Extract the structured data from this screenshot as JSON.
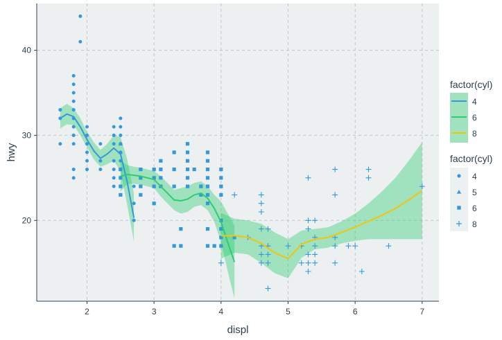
{
  "chart_data": {
    "type": "scatter",
    "xlabel": "displ",
    "ylabel": "hwy",
    "xlim": [
      1.25,
      7.25
    ],
    "ylim": [
      10.5,
      45.5
    ],
    "x_ticks": [
      2,
      3,
      4,
      5,
      6,
      7
    ],
    "y_ticks": [
      20,
      30,
      40
    ],
    "x_tick_labels": [
      "2",
      "3",
      "4",
      "5",
      "6",
      "7"
    ],
    "y_tick_labels": [
      "20",
      "30",
      "40"
    ],
    "grid": true,
    "legend_position": "right",
    "colors": {
      "panel_bg": "#ecf0f1",
      "grid": "#bdc3c7",
      "points": "#3498db",
      "ribbon": "#2ecc71",
      "line_4": "#3498db",
      "line_6": "#2ecc71",
      "line_8": "#f1c40f"
    },
    "legends": [
      {
        "title": "factor(cyl)",
        "kind": "line",
        "entries": [
          {
            "label": "4",
            "color": "#3498db"
          },
          {
            "label": "6",
            "color": "#2ecc71"
          },
          {
            "label": "8",
            "color": "#f1c40f"
          }
        ]
      },
      {
        "title": "factor(cyl)",
        "kind": "shape",
        "entries": [
          {
            "label": "4",
            "shape": "circle"
          },
          {
            "label": "5",
            "shape": "triangle"
          },
          {
            "label": "6",
            "shape": "square"
          },
          {
            "label": "8",
            "shape": "plus"
          }
        ]
      }
    ],
    "points": {
      "4": [
        [
          1.6,
          33
        ],
        [
          1.6,
          32
        ],
        [
          1.6,
          29
        ],
        [
          1.8,
          26
        ],
        [
          1.8,
          25
        ],
        [
          1.8,
          37
        ],
        [
          1.8,
          36
        ],
        [
          1.8,
          35
        ],
        [
          1.8,
          34
        ],
        [
          1.8,
          33
        ],
        [
          1.8,
          32
        ],
        [
          1.8,
          31
        ],
        [
          1.8,
          30
        ],
        [
          1.8,
          29
        ],
        [
          1.9,
          44
        ],
        [
          1.9,
          41
        ],
        [
          2,
          31
        ],
        [
          2,
          30
        ],
        [
          2,
          29
        ],
        [
          2,
          28
        ],
        [
          2,
          27
        ],
        [
          2,
          26
        ],
        [
          2.2,
          29
        ],
        [
          2.2,
          27
        ],
        [
          2.2,
          26
        ],
        [
          2.4,
          31
        ],
        [
          2.4,
          30
        ],
        [
          2.4,
          29
        ],
        [
          2.4,
          27
        ],
        [
          2.4,
          26
        ],
        [
          2.4,
          24
        ],
        [
          2.4,
          25
        ],
        [
          2.5,
          32
        ],
        [
          2.5,
          31
        ],
        [
          2.5,
          30
        ],
        [
          2.5,
          29
        ],
        [
          2.5,
          28
        ],
        [
          2.5,
          27
        ],
        [
          2.5,
          26
        ],
        [
          2.5,
          25
        ],
        [
          2.5,
          24
        ],
        [
          2.5,
          23
        ],
        [
          2.7,
          24
        ],
        [
          2.7,
          22
        ],
        [
          2.7,
          20
        ]
      ],
      "5": [
        [
          2.5,
          29
        ],
        [
          2.5,
          28
        ]
      ],
      "6": [
        [
          2.5,
          26
        ],
        [
          2.5,
          25
        ],
        [
          2.5,
          24
        ],
        [
          2.5,
          23
        ],
        [
          2.8,
          26
        ],
        [
          2.8,
          25
        ],
        [
          2.8,
          24
        ],
        [
          2.8,
          23
        ],
        [
          3,
          26
        ],
        [
          3,
          25
        ],
        [
          3,
          24
        ],
        [
          3,
          22
        ],
        [
          3.1,
          27
        ],
        [
          3.1,
          26
        ],
        [
          3.1,
          25
        ],
        [
          3.1,
          24
        ],
        [
          3.3,
          28
        ],
        [
          3.3,
          26
        ],
        [
          3.3,
          24
        ],
        [
          3.3,
          17
        ],
        [
          3.4,
          19
        ],
        [
          3.4,
          17
        ],
        [
          3.5,
          29
        ],
        [
          3.5,
          28
        ],
        [
          3.5,
          27
        ],
        [
          3.5,
          26
        ],
        [
          3.5,
          25
        ],
        [
          3.5,
          24
        ],
        [
          3.6,
          26
        ],
        [
          3.7,
          24
        ],
        [
          3.7,
          23
        ],
        [
          3.8,
          28
        ],
        [
          3.8,
          27
        ],
        [
          3.8,
          26
        ],
        [
          3.8,
          25
        ],
        [
          3.8,
          24
        ],
        [
          3.8,
          23
        ],
        [
          3.8,
          22
        ],
        [
          3.8,
          19
        ],
        [
          3.8,
          17
        ],
        [
          3.9,
          17
        ],
        [
          4,
          26
        ],
        [
          4,
          25
        ],
        [
          4,
          24
        ],
        [
          4,
          23
        ],
        [
          4,
          20
        ],
        [
          4,
          19
        ],
        [
          4,
          18
        ],
        [
          4,
          17
        ],
        [
          4.2,
          18
        ]
      ],
      "8": [
        [
          4,
          15
        ],
        [
          4.2,
          23
        ],
        [
          4.4,
          18
        ],
        [
          4.6,
          23
        ],
        [
          4.6,
          22
        ],
        [
          4.6,
          21
        ],
        [
          4.6,
          19
        ],
        [
          4.6,
          17
        ],
        [
          4.6,
          16
        ],
        [
          4.6,
          15
        ],
        [
          4.7,
          19
        ],
        [
          4.7,
          17
        ],
        [
          4.7,
          16
        ],
        [
          4.7,
          15
        ],
        [
          4.7,
          12
        ],
        [
          5,
          17
        ],
        [
          5.2,
          17
        ],
        [
          5.2,
          15
        ],
        [
          5.3,
          25
        ],
        [
          5.3,
          20
        ],
        [
          5.3,
          19
        ],
        [
          5.3,
          16
        ],
        [
          5.3,
          15
        ],
        [
          5.3,
          14
        ],
        [
          5.4,
          20
        ],
        [
          5.4,
          18
        ],
        [
          5.4,
          17
        ],
        [
          5.4,
          16
        ],
        [
          5.4,
          15
        ],
        [
          5.7,
          26
        ],
        [
          5.7,
          23
        ],
        [
          5.7,
          18
        ],
        [
          5.7,
          17
        ],
        [
          5.7,
          15
        ],
        [
          5.9,
          17
        ],
        [
          6,
          17
        ],
        [
          6.1,
          14
        ],
        [
          6.2,
          26
        ],
        [
          6.2,
          25
        ],
        [
          6.5,
          17
        ],
        [
          7,
          24
        ]
      ]
    },
    "smooth": {
      "4": {
        "x": [
          1.6,
          1.7,
          1.8,
          1.9,
          2.0,
          2.1,
          2.2,
          2.3,
          2.4,
          2.5,
          2.6,
          2.7
        ],
        "y": [
          32,
          32.5,
          32.2,
          31,
          29.5,
          28.2,
          27.3,
          27.8,
          28.5,
          27.8,
          24.5,
          20.3
        ],
        "ymin": [
          30.8,
          31.3,
          31.2,
          30,
          28.6,
          27.2,
          26.3,
          26.6,
          27.0,
          25.8,
          21.8,
          17.5
        ],
        "ymax": [
          33.2,
          33.7,
          33.2,
          32,
          30.4,
          29.2,
          28.3,
          29.0,
          30.0,
          29.8,
          27.2,
          23.1
        ]
      },
      "6": {
        "x": [
          2.5,
          2.6,
          2.7,
          2.8,
          3.0,
          3.1,
          3.2,
          3.3,
          3.4,
          3.5,
          3.6,
          3.7,
          3.8,
          3.9,
          4.0,
          4.1,
          4.2
        ],
        "y": [
          25.2,
          25.4,
          25.3,
          25.2,
          24.8,
          24.0,
          23.2,
          22.4,
          22.3,
          22.5,
          23.0,
          23.2,
          22.6,
          21.4,
          19.8,
          17.4,
          15.1
        ],
        "ymin": [
          23.4,
          24.3,
          24.3,
          24.2,
          23.8,
          22.8,
          22.0,
          21.2,
          20.8,
          21.0,
          21.6,
          21.8,
          21.2,
          19.8,
          17.4,
          14.0,
          10.8
        ],
        "ymax": [
          27.0,
          26.5,
          26.3,
          26.2,
          25.8,
          25.2,
          24.4,
          23.6,
          23.8,
          24.0,
          24.4,
          24.6,
          24.0,
          23.0,
          22.2,
          20.8,
          19.4
        ]
      },
      "8": {
        "x": [
          4.0,
          4.2,
          4.4,
          4.6,
          4.8,
          5.0,
          5.2,
          5.4,
          5.6,
          5.8,
          6.0,
          6.2,
          6.4,
          6.6,
          6.8,
          7.0
        ],
        "y": [
          18.2,
          18.2,
          18.0,
          17.3,
          16.2,
          15.5,
          17.2,
          17.8,
          18.0,
          18.6,
          19.2,
          19.9,
          20.6,
          21.4,
          22.4,
          23.5
        ],
        "ymin": [
          15.5,
          16.2,
          16.0,
          15.0,
          13.8,
          13.2,
          15.6,
          16.6,
          16.8,
          17.3,
          17.6,
          17.8,
          17.8,
          17.8,
          17.8,
          17.8
        ],
        "ymax": [
          20.9,
          20.2,
          20.0,
          19.6,
          18.6,
          17.8,
          18.8,
          19.0,
          19.2,
          19.9,
          20.8,
          22.0,
          23.4,
          25.0,
          27.0,
          29.2
        ]
      }
    }
  }
}
